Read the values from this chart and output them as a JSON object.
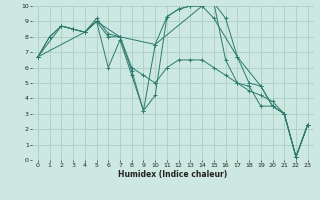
{
  "xlabel": "Humidex (Indice chaleur)",
  "bg_color": "#cce8e0",
  "line_color": "#2d7a6e",
  "grid_color": "#aacfc7",
  "xlim": [
    -0.5,
    23.5
  ],
  "ylim": [
    0,
    10
  ],
  "xticks": [
    0,
    1,
    2,
    3,
    4,
    5,
    6,
    7,
    8,
    9,
    10,
    11,
    12,
    13,
    14,
    15,
    16,
    17,
    18,
    19,
    20,
    21,
    22,
    23
  ],
  "yticks": [
    0,
    1,
    2,
    3,
    4,
    5,
    6,
    7,
    8,
    9,
    10
  ],
  "series": [
    [
      [
        0,
        6.7
      ],
      [
        1,
        8.0
      ],
      [
        2,
        8.7
      ],
      [
        3,
        8.5
      ],
      [
        4,
        8.3
      ],
      [
        5,
        9.2
      ],
      [
        6,
        8.2
      ],
      [
        7,
        8.0
      ],
      [
        8,
        5.8
      ],
      [
        9,
        3.2
      ],
      [
        10,
        7.5
      ],
      [
        11,
        9.3
      ],
      [
        12,
        9.8
      ],
      [
        13,
        10.0
      ],
      [
        14,
        10.0
      ],
      [
        15,
        10.2
      ],
      [
        16,
        9.2
      ],
      [
        17,
        6.7
      ],
      [
        18,
        5.0
      ],
      [
        19,
        4.8
      ],
      [
        20,
        3.5
      ],
      [
        21,
        3.0
      ],
      [
        22,
        0.2
      ],
      [
        23,
        2.3
      ]
    ],
    [
      [
        0,
        6.7
      ],
      [
        1,
        8.0
      ],
      [
        2,
        8.7
      ],
      [
        3,
        8.5
      ],
      [
        4,
        8.3
      ],
      [
        5,
        9.0
      ],
      [
        6,
        8.0
      ],
      [
        7,
        8.0
      ],
      [
        8,
        6.0
      ],
      [
        9,
        5.5
      ],
      [
        10,
        5.0
      ],
      [
        11,
        6.0
      ],
      [
        12,
        6.5
      ],
      [
        13,
        6.5
      ],
      [
        14,
        6.5
      ],
      [
        15,
        6.0
      ],
      [
        16,
        5.5
      ],
      [
        17,
        5.0
      ],
      [
        18,
        4.5
      ],
      [
        19,
        4.2
      ],
      [
        20,
        3.8
      ],
      [
        21,
        3.0
      ],
      [
        22,
        0.2
      ],
      [
        23,
        2.3
      ]
    ],
    [
      [
        0,
        6.7
      ],
      [
        2,
        8.7
      ],
      [
        3,
        8.5
      ],
      [
        4,
        8.3
      ],
      [
        5,
        9.0
      ],
      [
        7,
        8.0
      ],
      [
        10,
        7.5
      ],
      [
        14,
        10.0
      ],
      [
        15,
        9.2
      ],
      [
        17,
        6.7
      ],
      [
        19,
        4.8
      ],
      [
        20,
        3.5
      ],
      [
        21,
        3.0
      ],
      [
        22,
        0.2
      ],
      [
        23,
        2.3
      ]
    ],
    [
      [
        0,
        6.7
      ],
      [
        4,
        8.3
      ],
      [
        5,
        9.0
      ],
      [
        6,
        6.0
      ],
      [
        7,
        7.8
      ],
      [
        8,
        5.5
      ],
      [
        9,
        3.2
      ],
      [
        10,
        4.2
      ],
      [
        11,
        9.3
      ],
      [
        12,
        9.8
      ],
      [
        13,
        10.0
      ],
      [
        14,
        10.0
      ],
      [
        15,
        10.2
      ],
      [
        16,
        6.5
      ],
      [
        17,
        5.0
      ],
      [
        18,
        4.8
      ],
      [
        19,
        3.5
      ],
      [
        20,
        3.5
      ],
      [
        21,
        3.0
      ],
      [
        22,
        0.2
      ],
      [
        23,
        2.3
      ]
    ]
  ]
}
